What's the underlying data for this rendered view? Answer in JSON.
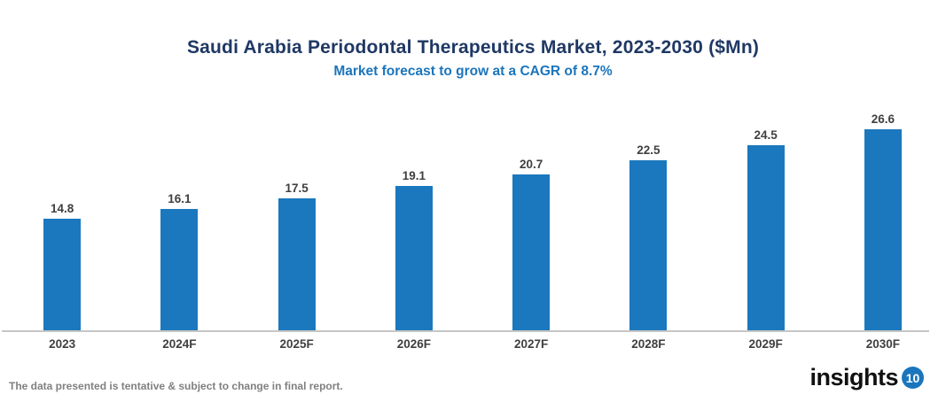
{
  "header": {
    "title": "Saudi Arabia Periodontal Therapeutics Market, 2023-2030 ($Mn)",
    "subtitle": "Market forecast to grow at a CAGR of 8.7%"
  },
  "chart_data": {
    "type": "bar",
    "title": "Saudi Arabia Periodontal Therapeutics Market, 2023-2030 ($Mn)",
    "subtitle": "Market forecast to grow at a CAGR of 8.7%",
    "categories": [
      "2023",
      "2024F",
      "2025F",
      "2026F",
      "2027F",
      "2028F",
      "2029F",
      "2030F"
    ],
    "values": [
      14.8,
      16.1,
      17.5,
      19.1,
      20.7,
      22.5,
      24.5,
      26.6
    ],
    "xlabel": "",
    "ylabel": "",
    "ylim": [
      0,
      28
    ],
    "grid": false,
    "legend": false,
    "value_labels_shown": true,
    "cagr": "8.7%"
  },
  "footer": {
    "note": "The data presented is tentative & subject to change in final report."
  },
  "logo": {
    "text": "insights",
    "badge": "10"
  },
  "colors": {
    "title": "#1f3864",
    "subtitle": "#1b75bc",
    "bar": "#1b78be",
    "axis_line": "#c6c6c6",
    "labels": "#3f3f3f",
    "footer": "#808080"
  }
}
